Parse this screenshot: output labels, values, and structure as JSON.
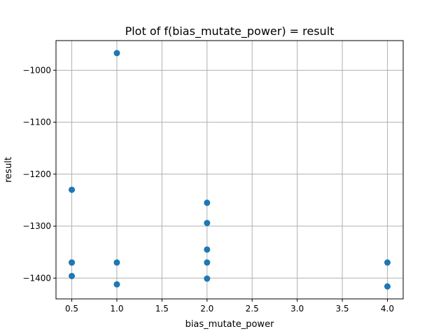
{
  "chart_data": {
    "type": "scatter",
    "title": "Plot of f(bias_mutate_power) = result",
    "xlabel": "bias_mutate_power",
    "ylabel": "result",
    "xlim": [
      0.325,
      4.175
    ],
    "ylim": [
      -1440,
      -943
    ],
    "xticks": [
      0.5,
      1.0,
      1.5,
      2.0,
      2.5,
      3.0,
      3.5,
      4.0
    ],
    "xtick_labels": [
      "0.5",
      "1.0",
      "1.5",
      "2.0",
      "2.5",
      "3.0",
      "3.5",
      "4.0"
    ],
    "yticks": [
      -1000,
      -1100,
      -1200,
      -1300,
      -1400
    ],
    "ytick_labels": [
      "−1000",
      "−1100",
      "−1200",
      "−1300",
      "−1400"
    ],
    "grid": true,
    "marker_color": "#1f77b4",
    "series": [
      {
        "x": [
          0.5,
          0.5,
          0.5,
          0.5,
          1.0,
          1.0,
          1.0,
          2.0,
          2.0,
          2.0,
          2.0,
          2.0,
          4.0,
          4.0
        ],
        "y": [
          -1230,
          -1370,
          -1370,
          -1396,
          -967,
          -1370,
          -1412,
          -1255,
          -1294,
          -1345,
          -1370,
          -1401,
          -1370,
          -1416
        ]
      }
    ]
  }
}
